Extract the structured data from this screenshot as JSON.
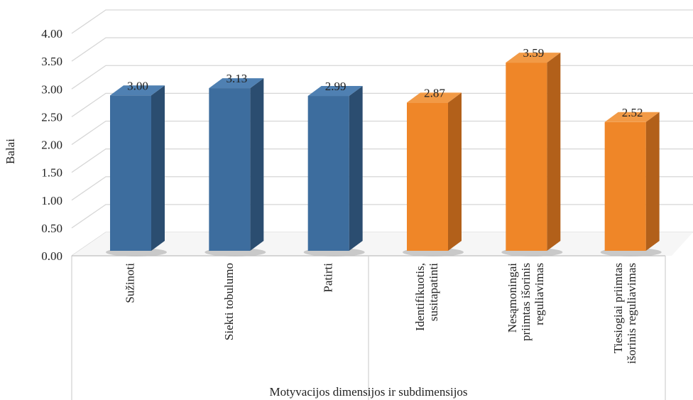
{
  "chart_data": {
    "type": "bar",
    "ylabel": "Balai",
    "xlabel": "Motyvacijos dimensijos ir subdimensijos",
    "ylim": [
      0,
      4
    ],
    "ytick_step": 0.5,
    "yticks": [
      "0.00",
      "0.50",
      "1.00",
      "1.50",
      "2.00",
      "2.50",
      "3.00",
      "3.50",
      "4.00"
    ],
    "grid": true,
    "legend": "none",
    "categories": [
      "Sužinoti",
      "Siekti tobulumo",
      "Patirti",
      "Identifikuotis, susitapatinti",
      "Nesąmoningai priimtas išorinis reguliavimas",
      "Tiesiogiai priimtas išorinis reguliavimas"
    ],
    "category_lines": [
      [
        "Sužinoti"
      ],
      [
        "Siekti tobulumo"
      ],
      [
        "Patirti"
      ],
      [
        "Identifikuotis,",
        "susitapatinti"
      ],
      [
        "Nesąmoningai",
        "priimtas išorinis",
        "reguliavimas"
      ],
      [
        "Tiesiogiai priimtas",
        "išorinis reguliavimas"
      ]
    ],
    "values": [
      3.0,
      3.13,
      2.99,
      2.87,
      3.59,
      2.52
    ],
    "value_labels": [
      "3.00",
      "3.13",
      "2.99",
      "2.87",
      "3.59",
      "2.52"
    ],
    "groups": [
      {
        "members": [
          0,
          1,
          2
        ],
        "color": "#3d6d9e"
      },
      {
        "members": [
          3,
          4,
          5
        ],
        "color": "#ef8628"
      }
    ],
    "colors": {
      "blue_front": "#3d6d9e",
      "blue_side": "#2b4d70",
      "blue_top": "#4f80b2",
      "orange_front": "#ef8628",
      "orange_side": "#b2601a",
      "orange_top": "#f29a46",
      "grid": "#d6d6d6"
    }
  }
}
